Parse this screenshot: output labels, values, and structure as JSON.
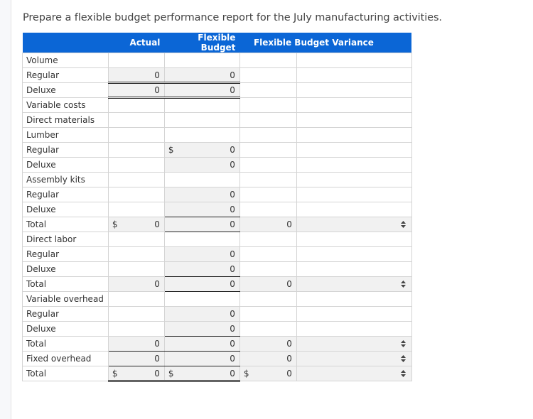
{
  "prompt": "Prepare a flexible budget performance report for the July manufacturing activities.",
  "header": {
    "col0": "",
    "actual": "Actual",
    "flexible_budget": "Flexible Budget",
    "variance": "Flexible Budget Variance"
  },
  "rows": [
    {
      "label": "Volume",
      "actual": "",
      "flex": "",
      "var": "",
      "sel": false
    },
    {
      "label": "Regular",
      "actual": "0",
      "flex": "0",
      "var": "",
      "sel": false
    },
    {
      "label": "Deluxe",
      "actual": "0",
      "flex": "0",
      "var": "",
      "sel": false
    },
    {
      "label": "Variable costs",
      "actual": "",
      "flex": "",
      "var": "",
      "sel": false
    },
    {
      "label": "Direct materials",
      "actual": "",
      "flex": "",
      "var": "",
      "sel": false
    },
    {
      "label": "Lumber",
      "actual": "",
      "flex": "",
      "var": "",
      "sel": false
    },
    {
      "label": "Regular",
      "actual": "",
      "flex": "0",
      "flex_dollar": "$",
      "var": "",
      "sel": false
    },
    {
      "label": "Deluxe",
      "actual": "",
      "flex": "0",
      "var": "",
      "sel": false
    },
    {
      "label": "Assembly kits",
      "actual": "",
      "flex": "",
      "var": "",
      "sel": false
    },
    {
      "label": "Regular",
      "actual": "",
      "flex": "0",
      "var": "",
      "sel": false
    },
    {
      "label": "Deluxe",
      "actual": "",
      "flex": "0",
      "var": "",
      "sel": false
    },
    {
      "label": "Total",
      "actual": "0",
      "actual_dollar": "$",
      "flex": "0",
      "var": "0",
      "sel": true
    },
    {
      "label": "Direct labor",
      "actual": "",
      "flex": "",
      "var": "",
      "sel": false
    },
    {
      "label": "Regular",
      "actual": "",
      "flex": "0",
      "var": "",
      "sel": false
    },
    {
      "label": "Deluxe",
      "actual": "",
      "flex": "0",
      "var": "",
      "sel": false
    },
    {
      "label": "Total",
      "actual": "0",
      "flex": "0",
      "var": "0",
      "sel": true
    },
    {
      "label": "Variable overhead",
      "actual": "",
      "flex": "",
      "var": "",
      "sel": false
    },
    {
      "label": "Regular",
      "actual": "",
      "flex": "0",
      "var": "",
      "sel": false
    },
    {
      "label": "Deluxe",
      "actual": "",
      "flex": "0",
      "var": "",
      "sel": false
    },
    {
      "label": "Total",
      "actual": "0",
      "flex": "0",
      "var": "0",
      "sel": true
    },
    {
      "label": "Fixed overhead",
      "actual": "0",
      "flex": "0",
      "var": "0",
      "sel": true
    },
    {
      "label": "Total",
      "actual": "0",
      "actual_dollar": "$",
      "flex": "0",
      "flex_dollar": "$",
      "var": "0",
      "var_dollar": "$",
      "sel": true
    }
  ],
  "icons": {
    "select": "up-down-chevron-icon"
  },
  "colors": {
    "header_bg": "#0b66d6",
    "shade": "#f1f1f1",
    "border": "#d4d4d4"
  }
}
